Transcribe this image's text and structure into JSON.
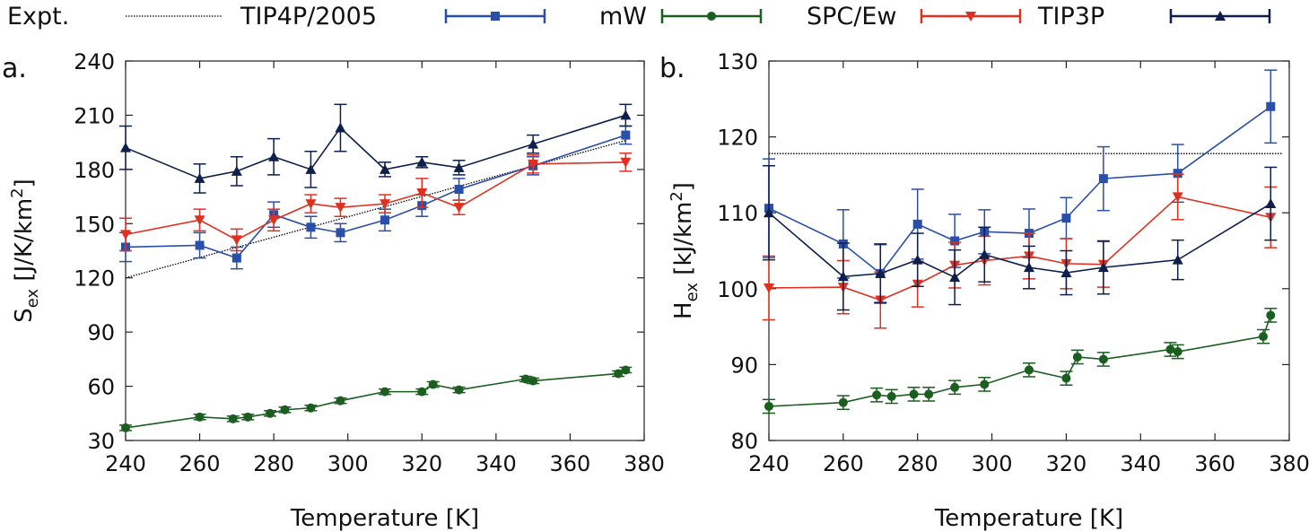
{
  "legend": [
    {
      "label": "Expt.",
      "color": "#000000",
      "marker": "none",
      "style": "dotted"
    },
    {
      "label": "TIP4P/2005",
      "color": "#2a4fa8",
      "marker": "square",
      "style": "solid"
    },
    {
      "label": "mW",
      "color": "#1b5e20",
      "marker": "circle",
      "style": "solid"
    },
    {
      "label": "SPC/Ew",
      "color": "#e03020",
      "marker": "triangle-down",
      "style": "solid"
    },
    {
      "label": "TIP3P",
      "color": "#0d1f4a",
      "marker": "triangle-up",
      "style": "solid"
    }
  ],
  "chart_data": [
    {
      "type": "line",
      "panel_label": "a.",
      "xlabel": "Temperature [K]",
      "ylabel": {
        "main": "S",
        "sub": "ex",
        "tail": " [J/K/km",
        "sup": "2",
        "close": "]"
      },
      "xlim": [
        240,
        380
      ],
      "ylim": [
        30,
        240
      ],
      "xticks": [
        240,
        260,
        280,
        300,
        320,
        340,
        360,
        380
      ],
      "yticks": [
        30,
        60,
        90,
        120,
        150,
        180,
        210,
        240
      ],
      "grid": false,
      "series": [
        {
          "name": "Expt.",
          "x": [
            240,
            375
          ],
          "y": [
            120,
            196
          ],
          "err": [
            0,
            0
          ]
        },
        {
          "name": "TIP4P/2005",
          "x": [
            240,
            260,
            270,
            280,
            290,
            298,
            310,
            320,
            330,
            350,
            375
          ],
          "y": [
            137,
            138,
            131,
            155,
            148,
            145,
            152,
            160,
            169,
            182,
            199
          ],
          "err": [
            8,
            7,
            6,
            7,
            6,
            5,
            6,
            6,
            6,
            5,
            5
          ]
        },
        {
          "name": "mW",
          "x": [
            240,
            260,
            269,
            273,
            279,
            283,
            290,
            298,
            310,
            320,
            323,
            330,
            348,
            350,
            373,
            375
          ],
          "y": [
            37,
            43,
            42,
            43,
            45,
            47,
            48,
            52,
            57,
            57,
            61,
            58,
            64,
            63,
            67,
            69
          ],
          "err": [
            1.5,
            1.5,
            1.5,
            1.5,
            1.5,
            1.5,
            1.5,
            1.5,
            1.5,
            1.5,
            1.5,
            1.5,
            1.5,
            1.5,
            1.5,
            1.5
          ]
        },
        {
          "name": "SPC/Ew",
          "x": [
            240,
            260,
            270,
            280,
            290,
            298,
            310,
            320,
            330,
            350,
            375
          ],
          "y": [
            144,
            152,
            141,
            152,
            161,
            159,
            161,
            167,
            159,
            183,
            184
          ],
          "err": [
            9,
            6,
            6,
            6,
            5,
            5,
            5,
            8,
            4,
            5,
            5
          ]
        },
        {
          "name": "TIP3P",
          "x": [
            240,
            260,
            270,
            280,
            290,
            298,
            310,
            320,
            330,
            350,
            375
          ],
          "y": [
            192,
            175,
            179,
            187,
            180,
            203,
            180,
            184,
            181,
            194,
            210
          ],
          "err": [
            12,
            8,
            8,
            10,
            10,
            13,
            4,
            3,
            4,
            5,
            6
          ]
        }
      ]
    },
    {
      "type": "line",
      "panel_label": "b.",
      "xlabel": "Temperature [K]",
      "ylabel": {
        "main": "H",
        "sub": "ex",
        "tail": " [kJ/km",
        "sup": "2",
        "close": "]"
      },
      "xlim": [
        240,
        380
      ],
      "ylim": [
        80,
        130
      ],
      "xticks": [
        240,
        260,
        280,
        300,
        320,
        340,
        360,
        380
      ],
      "yticks": [
        80,
        90,
        100,
        110,
        120,
        130
      ],
      "grid": false,
      "series": [
        {
          "name": "Expt.",
          "x": [
            240,
            378
          ],
          "y": [
            117.8,
            117.8
          ],
          "err": [
            0,
            0
          ]
        },
        {
          "name": "TIP4P/2005",
          "x": [
            240,
            260,
            270,
            280,
            290,
            298,
            310,
            320,
            330,
            350,
            375
          ],
          "y": [
            110.6,
            105.9,
            102.0,
            108.5,
            106.3,
            107.5,
            107.3,
            109.3,
            114.5,
            115.2,
            124.0
          ],
          "err": [
            6.5,
            4.5,
            3.8,
            4.6,
            3.5,
            2.9,
            3.2,
            2.7,
            4.2,
            3.8,
            4.8
          ]
        },
        {
          "name": "mW",
          "x": [
            240,
            260,
            269,
            273,
            279,
            283,
            290,
            298,
            310,
            320,
            323,
            330,
            348,
            350,
            373,
            375
          ],
          "y": [
            84.5,
            85.0,
            86.0,
            85.8,
            86.1,
            86.1,
            87.0,
            87.4,
            89.3,
            88.2,
            91.0,
            90.7,
            92.0,
            91.7,
            93.7,
            96.5
          ],
          "err": [
            0.9,
            0.9,
            0.9,
            0.9,
            0.9,
            0.9,
            0.9,
            0.9,
            0.9,
            0.9,
            0.9,
            0.9,
            0.9,
            0.9,
            0.9,
            0.9
          ]
        },
        {
          "name": "SPC/Ew",
          "x": [
            240,
            260,
            270,
            280,
            290,
            298,
            310,
            320,
            330,
            350,
            375
          ],
          "y": [
            100.1,
            100.2,
            98.5,
            100.6,
            103.1,
            103.7,
            104.3,
            103.3,
            103.2,
            112.1,
            109.4
          ],
          "err": [
            4.2,
            3.5,
            3.7,
            3.0,
            3.0,
            3.2,
            3.0,
            3.3,
            3.0,
            3.0,
            4.0
          ]
        },
        {
          "name": "TIP3P",
          "x": [
            240,
            260,
            270,
            280,
            290,
            298,
            310,
            320,
            330,
            350,
            375
          ],
          "y": [
            110.0,
            101.6,
            102.0,
            103.8,
            101.5,
            104.5,
            102.8,
            102.1,
            102.8,
            103.8,
            111.2
          ],
          "err": [
            6.2,
            4.4,
            3.9,
            3.5,
            3.6,
            3.6,
            2.8,
            2.9,
            3.5,
            2.6,
            4.8
          ]
        }
      ]
    }
  ]
}
